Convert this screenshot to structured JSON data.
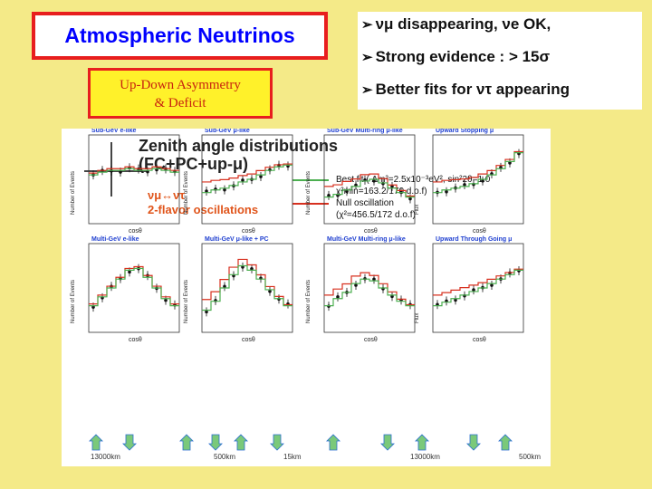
{
  "title": "Atmospheric Neutrinos",
  "asymmetry_box": {
    "line1": "Up-Down Asymmetry",
    "line2": "& Deficit"
  },
  "bullets": [
    {
      "text": "νμ disappearing,  νe OK,"
    },
    {
      "text": "Strong evidence : > 15σ"
    },
    {
      "text": "Better fits for ντ appearing"
    }
  ],
  "figure": {
    "title_line1": "Zenith angle distributions",
    "title_line2": "(FC+PC+up-μ)",
    "osc_line1": "νμ↔ντ",
    "osc_line2": "2-flavor oscillations",
    "legend": [
      {
        "label": "Best fit ( Δm²=2.5x10⁻³eV², sin²2θ=1.0",
        "sub": "χ²min=163.2/170 d.o.f)",
        "color": "#4caf50"
      },
      {
        "label": "Null oscillation",
        "sub": "(χ²=456.5/172 d.o.f)",
        "color": "#d7301f"
      }
    ],
    "panels": [
      {
        "label": "Sub-GeV e-like",
        "ylabel": "Number of Events"
      },
      {
        "label": "Sub-GeV μ-like",
        "ylabel": "Number of Events"
      },
      {
        "label": "Sub-GeV Multi-ring μ-like",
        "ylabel": "Number of Events"
      },
      {
        "label": "Upward Stopping μ",
        "ylabel": "Flux"
      },
      {
        "label": "Multi-GeV e-like",
        "ylabel": "Number of Events"
      },
      {
        "label": "Multi-GeV μ-like + PC",
        "ylabel": "Number of Events"
      },
      {
        "label": "Multi-GeV Multi-ring μ-like",
        "ylabel": "Number of Events"
      },
      {
        "label": "Upward Through Going μ",
        "ylabel": "Flux"
      }
    ],
    "distances": [
      "13000km",
      "500km",
      "15km",
      "13000km",
      "500km"
    ],
    "xaxis": "cosθ",
    "accent": "#4caf50",
    "null_color": "#d7301f"
  }
}
